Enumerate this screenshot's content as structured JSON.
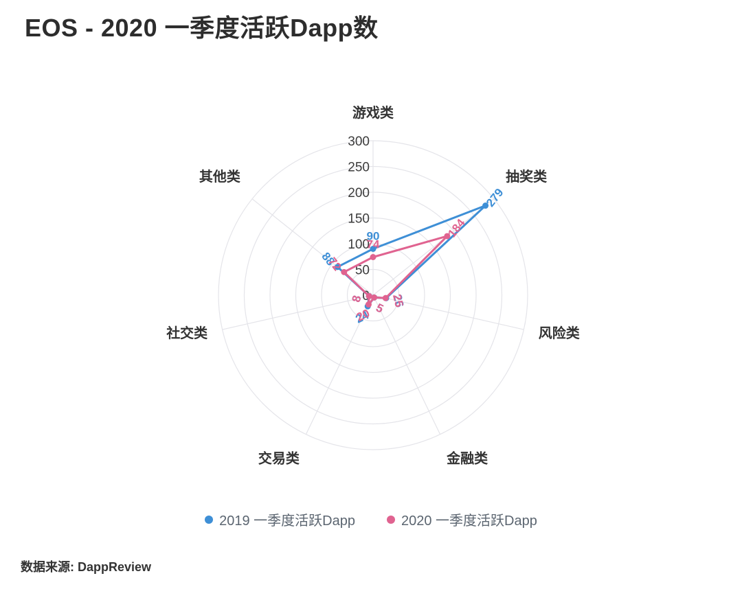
{
  "title": "EOS - 2020 一季度活跃Dapp数",
  "source": "数据来源: DappReview",
  "chart_data": {
    "type": "radar",
    "title": "EOS - 2020 一季度活跃Dapp数",
    "categories": [
      "游戏类",
      "抽奖类",
      "风险类",
      "金融类",
      "交易类",
      "社交类",
      "其他类"
    ],
    "max": 300,
    "tick_interval": 50,
    "tick_labels": [
      300,
      250,
      200,
      150,
      100,
      50,
      0
    ],
    "grid_color": "#e4e4e9",
    "legend_position": "bottom",
    "series": [
      {
        "name": "2019 一季度活跃Dapp",
        "color": "#3E8FD6",
        "values": [
          90,
          279,
          26,
          5,
          24,
          8,
          88
        ]
      },
      {
        "name": "2020 一季度活跃Dapp",
        "color": "#E06390",
        "values": [
          74,
          184,
          25,
          5,
          20,
          8,
          72
        ]
      }
    ]
  }
}
